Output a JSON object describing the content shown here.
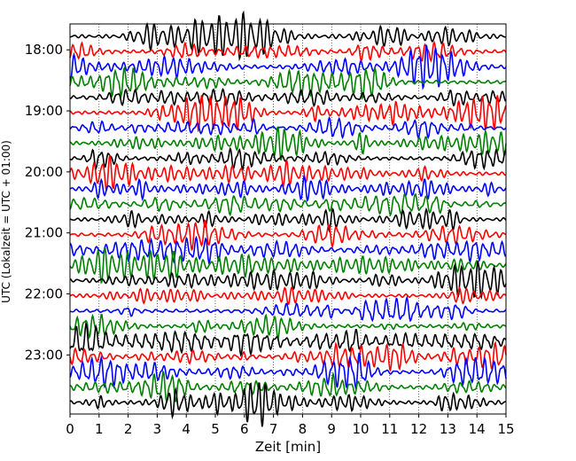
{
  "chart_data": {
    "type": "line",
    "subtype": "seismic-helicorder",
    "xlabel": "Zeit  [min]",
    "ylabel": "UTC (Lokalzeit = UTC + 01:00)",
    "xlim": [
      0,
      15
    ],
    "x_ticks": [
      "0",
      "1",
      "2",
      "3",
      "4",
      "5",
      "6",
      "7",
      "8",
      "9",
      "10",
      "11",
      "12",
      "13",
      "14",
      "15"
    ],
    "y_tick_labels": [
      "18:00",
      "19:00",
      "20:00",
      "21:00",
      "22:00",
      "23:00"
    ],
    "grid": "vertical dotted lines at each minute",
    "trace_interval_min": 15,
    "trace_start": "17:45",
    "trace_count": 25,
    "trace_color_cycle": [
      "#000000",
      "#ff0000",
      "#0000ff",
      "#008000"
    ],
    "waveform": "continuous oscillating noise, amplitude roughly constant (synthetic reconstruction)"
  }
}
